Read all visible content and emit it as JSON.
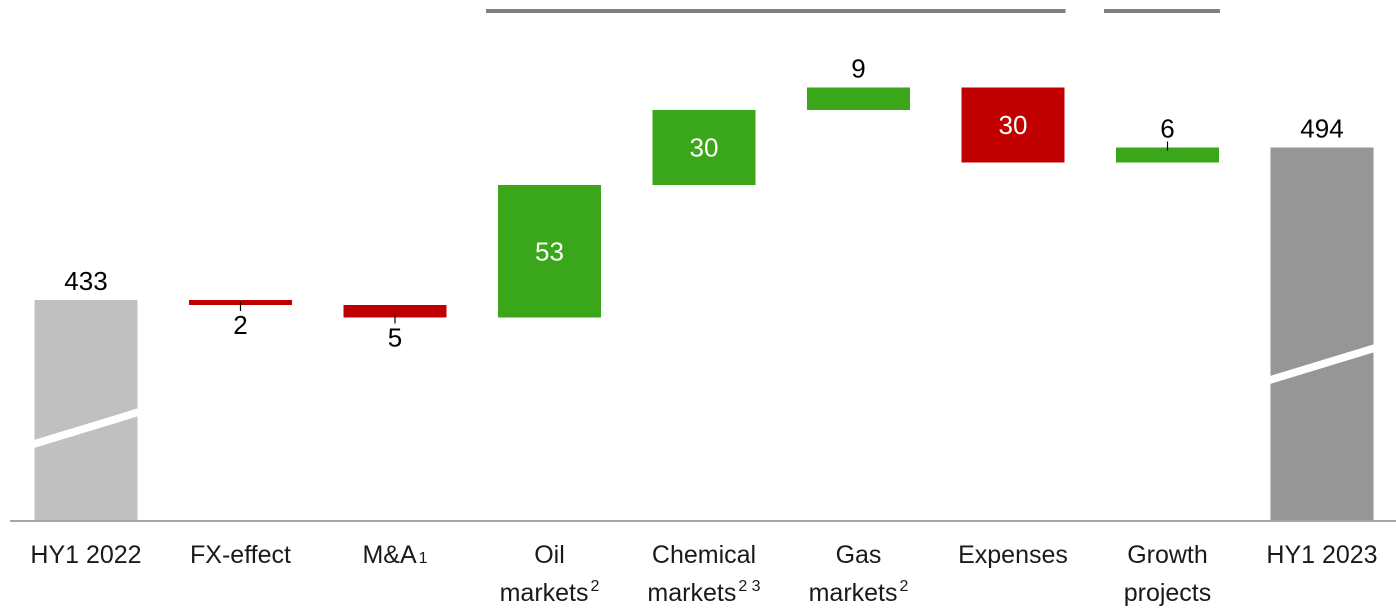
{
  "chart_data": {
    "type": "waterfall",
    "title": "",
    "xlabel": "",
    "ylabel": "",
    "y_axis_shown": false,
    "grid": false,
    "axis_break_on_totals": true,
    "categories": [
      {
        "key": "hy1-2022",
        "lines": [
          "HY1 2022"
        ],
        "marker": ""
      },
      {
        "key": "fx-effect",
        "lines": [
          "FX-effect"
        ],
        "marker": ""
      },
      {
        "key": "m-and-a",
        "lines": [
          "M&A"
        ],
        "marker": "1"
      },
      {
        "key": "oil-markets",
        "lines": [
          "Oil",
          "markets"
        ],
        "marker": "2"
      },
      {
        "key": "chemical-markets",
        "lines": [
          "Chemical",
          "markets"
        ],
        "marker": "2 3"
      },
      {
        "key": "gas-markets",
        "lines": [
          "Gas",
          "markets"
        ],
        "marker": "2"
      },
      {
        "key": "expenses",
        "lines": [
          "Expenses"
        ],
        "marker": ""
      },
      {
        "key": "growth-projects",
        "lines": [
          "Growth",
          "projects"
        ],
        "marker": ""
      },
      {
        "key": "hy1-2023",
        "lines": [
          "HY1 2023"
        ],
        "marker": ""
      }
    ],
    "steps": [
      {
        "kind": "total",
        "value": 433,
        "label": "433",
        "color": "#c0c0c0"
      },
      {
        "kind": "decrease",
        "value": -2,
        "label": "2",
        "color": "#c00000"
      },
      {
        "kind": "decrease",
        "value": -5,
        "label": "5",
        "color": "#c00000"
      },
      {
        "kind": "increase",
        "value": 53,
        "label": "53",
        "color": "#3aa61a"
      },
      {
        "kind": "increase",
        "value": 30,
        "label": "30",
        "color": "#3aa61a"
      },
      {
        "kind": "increase",
        "value": 9,
        "label": "9",
        "color": "#3aa61a"
      },
      {
        "kind": "decrease",
        "value": -30,
        "label": "30",
        "color": "#c00000"
      },
      {
        "kind": "increase",
        "value": 6,
        "label": "6",
        "color": "#3aa61a"
      },
      {
        "kind": "total",
        "value": 494,
        "label": "494",
        "color": "#969696"
      }
    ],
    "group_brackets": [
      {
        "from": 3,
        "to": 6,
        "color": "#7f7f7f"
      },
      {
        "from": 7,
        "to": 7,
        "color": "#7f7f7f"
      }
    ],
    "colors": {
      "increase": "#3aa61a",
      "decrease": "#c00000",
      "total_start": "#c0c0c0",
      "total_end": "#969696",
      "baseline": "#a6a6a6",
      "bracket": "#7f7f7f"
    }
  }
}
